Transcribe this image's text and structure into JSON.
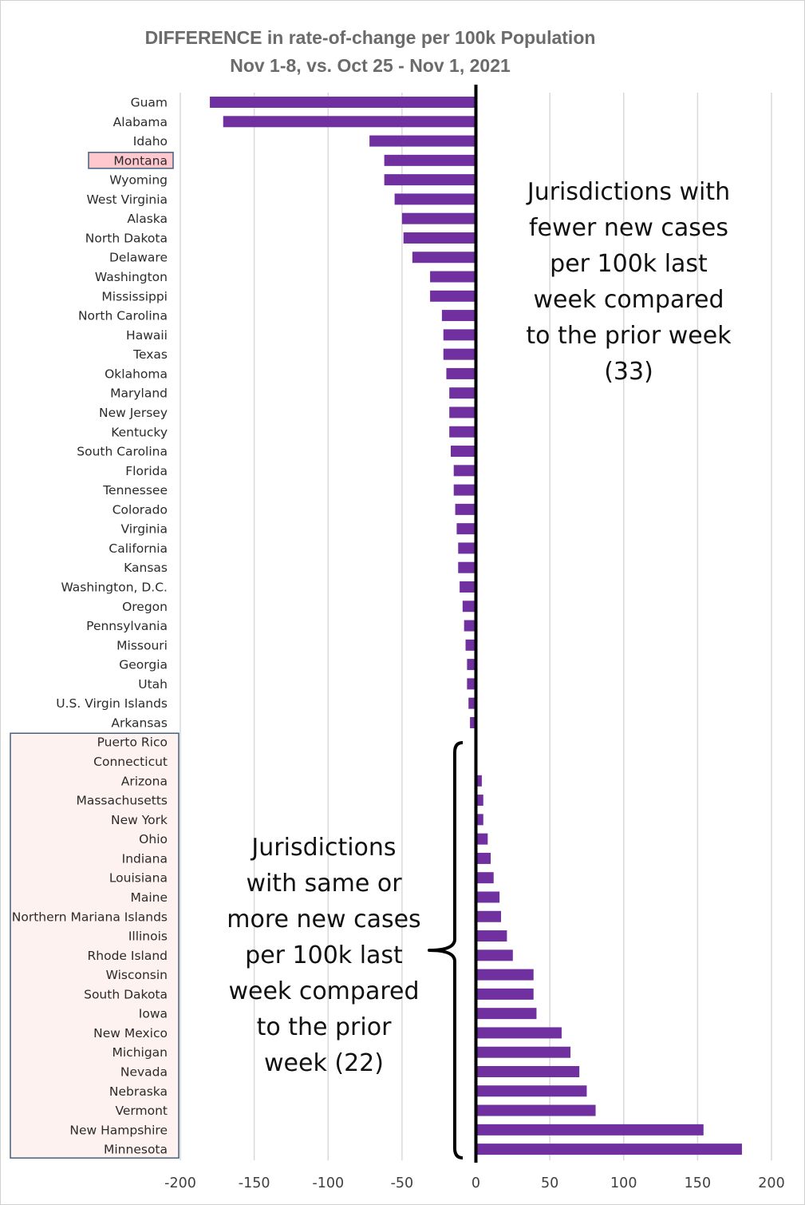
{
  "chart_data": {
    "type": "bar",
    "orientation": "horizontal",
    "title": "DIFFERENCE in rate-of-change per 100k Population",
    "subtitle": "Nov 1-8, vs. Oct 25 - Nov 1, 2021",
    "xlim": [
      -200,
      200
    ],
    "xticks": [
      -200,
      -150,
      -100,
      -50,
      0,
      50,
      100,
      150,
      200
    ],
    "grid": "vertical",
    "highlight_label": "Montana",
    "bar_color": "#7030a0",
    "highlight_fill": "#ffc7ce",
    "group_box_fill": "#fdf2ef",
    "categories": [
      "Guam",
      "Alabama",
      "Idaho",
      "Montana",
      "Wyoming",
      "West Virginia",
      "Alaska",
      "North Dakota",
      "Delaware",
      "Washington",
      "Mississippi",
      "North Carolina",
      "Hawaii",
      "Texas",
      "Oklahoma",
      "Maryland",
      "New Jersey",
      "Kentucky",
      "South Carolina",
      "Florida",
      "Tennessee",
      "Colorado",
      "Virginia",
      "California",
      "Kansas",
      "Washington, D.C.",
      "Oregon",
      "Pennsylvania",
      "Missouri",
      "Georgia",
      "Utah",
      "U.S. Virgin Islands",
      "Arkansas",
      "Puerto Rico",
      "Connecticut",
      "Arizona",
      "Massachusetts",
      "New York",
      "Ohio",
      "Indiana",
      "Louisiana",
      "Maine",
      "Northern Mariana Islands",
      "Illinois",
      "Rhode Island",
      "Wisconsin",
      "South Dakota",
      "Iowa",
      "New Mexico",
      "Michigan",
      "Nevada",
      "Nebraska",
      "Vermont",
      "New Hampshire",
      "Minnesota"
    ],
    "values": [
      -180,
      -171,
      -72,
      -62,
      -62,
      -55,
      -50,
      -49,
      -43,
      -31,
      -31,
      -23,
      -22,
      -22,
      -20,
      -18,
      -18,
      -18,
      -17,
      -15,
      -15,
      -14,
      -13,
      -12,
      -12,
      -11,
      -9,
      -8,
      -7,
      -6,
      -6,
      -5,
      -4,
      0,
      1,
      4,
      5,
      5,
      8,
      10,
      12,
      16,
      17,
      21,
      25,
      39,
      39,
      41,
      58,
      64,
      70,
      75,
      81,
      154,
      180
    ],
    "annotations": {
      "fewer": [
        "Jurisdictions with",
        "fewer new cases",
        "per 100k last",
        "week compared",
        "to the prior week",
        "(33)"
      ],
      "more": [
        "Jurisdictions",
        "with same or",
        "more new cases",
        "per 100k last",
        "week compared",
        "to the prior",
        "week (22)"
      ]
    }
  }
}
